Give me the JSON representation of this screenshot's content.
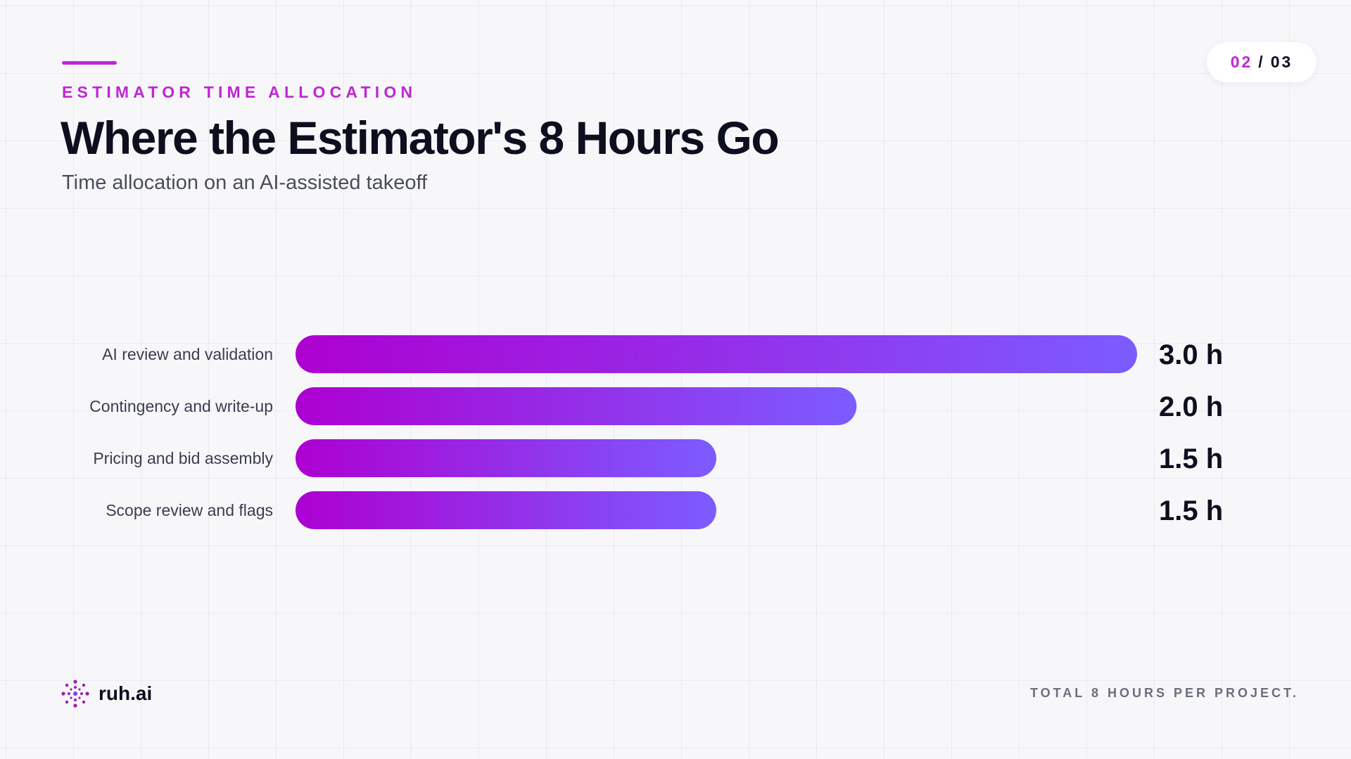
{
  "colors": {
    "accent": "#c026d3",
    "bar_start": "#ad00d1",
    "bar_end": "#7c5cff"
  },
  "header": {
    "eyebrow": "ESTIMATOR TIME ALLOCATION",
    "title": "Where the Estimator's 8 Hours Go",
    "subtitle": "Time allocation on an AI-assisted takeoff"
  },
  "pagination": {
    "current": "02",
    "separator": "/",
    "total": "03"
  },
  "footer": {
    "brand_name": "ruh.ai",
    "brand_icon": "dotted-circle-logo-icon",
    "note": "TOTAL 8 HOURS PER PROJECT."
  },
  "chart_data": {
    "type": "bar",
    "orientation": "horizontal",
    "categories": [
      "AI review and validation",
      "Contingency and write-up",
      "Pricing and bid assembly",
      "Scope review and flags"
    ],
    "values": [
      3.0,
      2.0,
      1.5,
      1.5
    ],
    "value_labels": [
      "3.0 h",
      "2.0 h",
      "1.5 h",
      "1.5 h"
    ],
    "unit": "h",
    "xlim": [
      0,
      3.0
    ],
    "grid": false,
    "legend": "none"
  }
}
